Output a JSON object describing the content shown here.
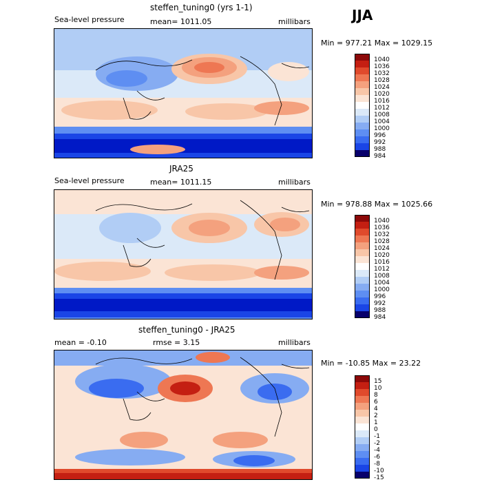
{
  "season": "JJA",
  "palette": [
    "#08006b",
    "#0019c6",
    "#1a45e6",
    "#3a6cf0",
    "#5e8ef2",
    "#86acf2",
    "#b1cdf5",
    "#dbe9f8",
    "#fbe4d5",
    "#f8c6a8",
    "#f4a17e",
    "#ee7753",
    "#e04a2c",
    "#c41f12",
    "#8c0909"
  ],
  "panels": [
    {
      "title": "steffen_tuning0 (yrs 1-1)",
      "left_label": "Sea-level pressure",
      "center_label": "mean= 1011.05",
      "right_label": "millibars",
      "min_max": "Min = 977.21 Max = 1029.15",
      "colorbar_labels": [
        "1040",
        "1036",
        "1032",
        "1028",
        "1024",
        "1020",
        "1016",
        "1012",
        "1008",
        "1004",
        "1000",
        "996",
        "992",
        "988",
        "984"
      ]
    },
    {
      "title": "JRA25",
      "left_label": "Sea-level pressure",
      "center_label": "mean= 1011.15",
      "right_label": "millibars",
      "min_max": "Min = 978.88 Max = 1025.66",
      "colorbar_labels": [
        "1040",
        "1036",
        "1032",
        "1028",
        "1024",
        "1020",
        "1016",
        "1012",
        "1008",
        "1004",
        "1000",
        "996",
        "992",
        "988",
        "984"
      ]
    },
    {
      "title": "steffen_tuning0 - JRA25",
      "left_label": "mean =  -0.10",
      "center_label": "rmse =   3.15",
      "right_label": "millibars",
      "min_max": "Min = -10.85 Max =  23.22",
      "colorbar_labels": [
        "15",
        "10",
        "8",
        "6",
        "4",
        "2",
        "1",
        "0",
        "-1",
        "-2",
        "-4",
        "-6",
        "-8",
        "-10",
        "-15"
      ]
    }
  ]
}
